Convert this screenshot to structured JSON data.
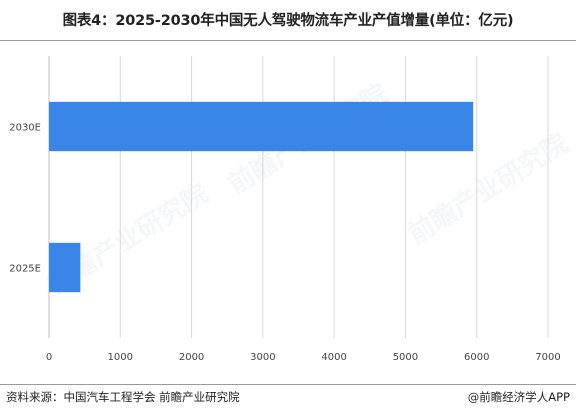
{
  "title": "图表4：2025-2030年中国无人驾驶物流车产业产值增量(单位：亿元)",
  "source": "资料来源：中国汽车工程学会 前瞻产业研究院",
  "credit": "@前瞻经济学人APP",
  "watermark": "前瞻产业研究院",
  "colors": {
    "bar": "#3A86E8",
    "grid": "#D9D9D9",
    "axis": "#BFBFBF",
    "tick_text": "#444444"
  },
  "chart_data": {
    "type": "bar",
    "orientation": "horizontal",
    "categories": [
      "2030E",
      "2025E"
    ],
    "values": [
      5950,
      440
    ],
    "xlim": [
      0,
      7000
    ],
    "xticks": [
      0,
      1000,
      2000,
      3000,
      4000,
      5000,
      6000,
      7000
    ],
    "grid": true,
    "title": "图表4：2025-2030年中国无人驾驶物流车产业产值增量(单位：亿元)",
    "xlabel": "",
    "ylabel": "",
    "unit": "亿元"
  }
}
